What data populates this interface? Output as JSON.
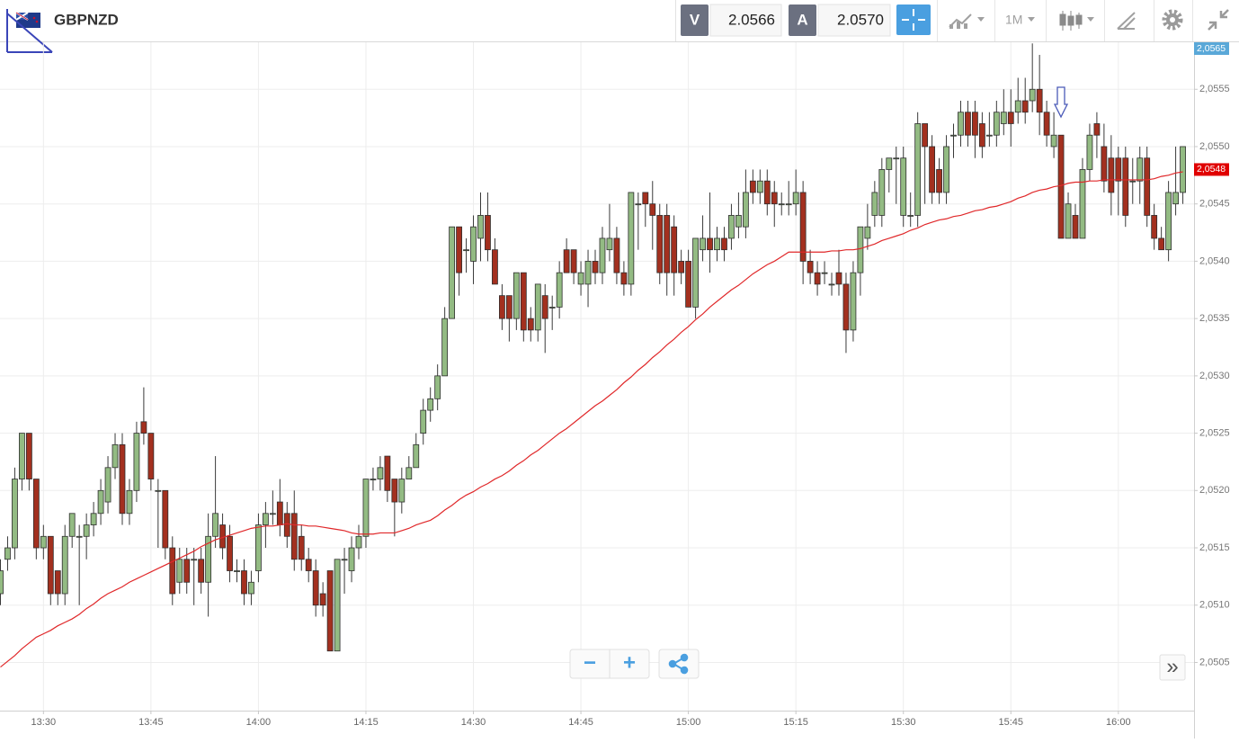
{
  "header": {
    "symbol": "GBPNZD",
    "sell_label": "V",
    "sell_price": "2.0566",
    "buy_label": "A",
    "buy_price": "2.0570",
    "timeframe": "1M"
  },
  "controls": {
    "zoom_out": "−",
    "zoom_in": "+",
    "expand": "»"
  },
  "chart_data": {
    "type": "candlestick",
    "categories": [
      null,
      null,
      null,
      null,
      null,
      null,
      "13:30",
      null,
      null,
      null,
      null,
      null,
      null,
      null,
      null,
      null,
      null,
      null,
      null,
      null,
      null,
      "13:45",
      null,
      null,
      null,
      null,
      null,
      null,
      null,
      null,
      null,
      null,
      null,
      null,
      null,
      null,
      "14:00",
      null,
      null,
      null,
      null,
      null,
      null,
      null,
      null,
      null,
      null,
      null,
      null,
      null,
      null,
      "14:15",
      null,
      null,
      null,
      null,
      null,
      null,
      null,
      null,
      null,
      null,
      null,
      null,
      null,
      null,
      "14:30",
      null,
      null,
      null,
      null,
      null,
      null,
      null,
      null,
      null,
      null,
      null,
      null,
      null,
      null,
      "14:45",
      null,
      null,
      null,
      null,
      null,
      null,
      null,
      null,
      null,
      null,
      null,
      null,
      null,
      null,
      "15:00",
      null,
      null,
      null,
      null,
      null,
      null,
      null,
      null,
      null,
      null,
      null,
      null,
      null,
      null,
      "15:15",
      null,
      null,
      null,
      null,
      null,
      null,
      null,
      null,
      null,
      null,
      null,
      null,
      null,
      null,
      "15:30",
      null,
      null,
      null,
      null,
      null,
      null,
      null,
      null,
      null,
      null,
      null,
      null,
      null,
      null,
      "15:45",
      null,
      null,
      null,
      null,
      null,
      null,
      null,
      null,
      null,
      null,
      null,
      null,
      null,
      null,
      "16:00",
      null,
      null,
      null,
      null,
      null,
      null,
      null,
      null,
      null
    ],
    "open": [
      2.0511,
      2.0514,
      2.0515,
      2.0521,
      2.0525,
      2.0521,
      2.0515,
      2.0516,
      2.0513,
      2.0511,
      2.0516,
      2.0516,
      2.0516,
      2.0517,
      2.0518,
      2.0519,
      2.0522,
      2.0524,
      2.0518,
      2.052,
      2.0526,
      2.0525,
      2.052,
      2.052,
      2.0515,
      2.0512,
      2.0514,
      2.0514,
      2.0514,
      2.0512,
      2.0516,
      2.0517,
      2.0516,
      2.0513,
      2.0513,
      2.0511,
      2.0513,
      2.0517,
      2.0518,
      2.0519,
      2.0518,
      2.0518,
      2.0516,
      2.0514,
      2.0513,
      2.0511,
      2.0513,
      2.0506,
      2.0514,
      2.0513,
      2.0515,
      2.0516,
      2.0521,
      2.0521,
      2.0523,
      2.0521,
      2.0519,
      2.0521,
      2.0522,
      2.0525,
      2.0527,
      2.0528,
      2.053,
      2.0535,
      2.0543,
      2.0541,
      2.054,
      2.0542,
      2.0544,
      2.0541,
      2.0537,
      2.0537,
      2.0535,
      2.0539,
      2.0535,
      2.0534,
      2.0537,
      2.0536,
      2.0536,
      2.0541,
      2.0541,
      2.0538,
      2.0538,
      2.054,
      2.0539,
      2.0541,
      2.0542,
      2.0539,
      2.0538,
      2.0545,
      2.0546,
      2.0545,
      2.0544,
      2.0544,
      2.0543,
      2.054,
      2.054,
      2.0536,
      2.0541,
      2.0542,
      2.0541,
      2.0542,
      2.0542,
      2.0543,
      2.0543,
      2.0547,
      2.0546,
      2.0547,
      2.0546,
      2.0545,
      2.0545,
      2.0545,
      2.0546,
      2.054,
      2.0539,
      2.0539,
      2.0538,
      2.0539,
      2.0538,
      2.0534,
      2.0539,
      2.0542,
      2.0544,
      2.0544,
      2.0548,
      2.0549,
      2.0544,
      2.0544,
      2.0544,
      2.0552,
      2.055,
      2.0548,
      2.0546,
      2.0551,
      2.0551,
      2.0553,
      2.0553,
      2.0552,
      2.0551,
      2.0551,
      2.0552,
      2.0553,
      2.0553,
      2.0554,
      2.0554,
      2.0555,
      2.0553,
      2.055,
      2.0551,
      2.0542,
      2.0544,
      2.0542,
      2.0548,
      2.0552,
      2.055,
      2.0549,
      2.0549,
      2.0549,
      2.0547,
      2.0547,
      2.0549,
      2.0544,
      2.0542,
      2.0541,
      2.0545,
      2.0546
    ],
    "high": [
      2.0514,
      2.0516,
      2.0522,
      2.0525,
      2.0525,
      2.0521,
      2.0517,
      2.0516,
      2.0513,
      2.0517,
      2.0518,
      2.0517,
      2.0518,
      2.0519,
      2.0521,
      2.0523,
      2.0525,
      2.0525,
      2.0521,
      2.0526,
      2.0529,
      2.0525,
      2.0521,
      2.052,
      2.0516,
      2.0515,
      2.0515,
      2.0515,
      2.0515,
      2.0518,
      2.0523,
      2.0518,
      2.0517,
      2.0514,
      2.0514,
      2.0513,
      2.0518,
      2.0519,
      2.052,
      2.0521,
      2.0519,
      2.052,
      2.0517,
      2.0515,
      2.0514,
      2.0512,
      2.0513,
      2.0514,
      2.0515,
      2.0516,
      2.0517,
      2.0521,
      2.0522,
      2.0523,
      2.0523,
      2.0521,
      2.0522,
      2.0523,
      2.0525,
      2.0528,
      2.0529,
      2.0531,
      2.0536,
      2.0543,
      2.0543,
      2.0542,
      2.0544,
      2.0546,
      2.0546,
      2.0542,
      2.0538,
      2.0537,
      2.0539,
      2.0539,
      2.0536,
      2.0538,
      2.0538,
      2.0537,
      2.054,
      2.0542,
      2.0541,
      2.054,
      2.0541,
      2.0541,
      2.0543,
      2.0545,
      2.0543,
      2.054,
      2.0546,
      2.0546,
      2.0546,
      2.0547,
      2.0545,
      2.0545,
      2.0544,
      2.0541,
      2.0541,
      2.0542,
      2.0544,
      2.0546,
      2.0543,
      2.0543,
      2.0545,
      2.0546,
      2.0548,
      2.0548,
      2.0548,
      2.0548,
      2.0547,
      2.0546,
      2.0547,
      2.0548,
      2.0547,
      2.0541,
      2.054,
      2.054,
      2.0539,
      2.0541,
      2.0539,
      2.054,
      2.0543,
      2.0545,
      2.0547,
      2.0549,
      2.0549,
      2.055,
      2.055,
      2.0546,
      2.0553,
      2.0552,
      2.0551,
      2.0549,
      2.0551,
      2.0552,
      2.0554,
      2.0554,
      2.0554,
      2.0553,
      2.0553,
      2.0554,
      2.0555,
      2.0555,
      2.0556,
      2.0556,
      2.0559,
      2.0558,
      2.0554,
      2.0553,
      2.0551,
      2.0546,
      2.0545,
      2.0549,
      2.0552,
      2.0553,
      2.0552,
      2.0551,
      2.055,
      2.055,
      2.0549,
      2.055,
      2.055,
      2.0545,
      2.0543,
      2.0547,
      2.055,
      2.055
    ],
    "low": [
      2.051,
      2.0513,
      2.0514,
      2.052,
      2.052,
      2.0514,
      2.0514,
      2.051,
      2.051,
      2.051,
      2.0515,
      2.051,
      2.0514,
      2.0516,
      2.0517,
      2.0518,
      2.0521,
      2.0517,
      2.0517,
      2.0519,
      2.0524,
      2.052,
      2.0515,
      2.0514,
      2.051,
      2.0511,
      2.0511,
      2.051,
      2.0511,
      2.0509,
      2.0515,
      2.0514,
      2.0512,
      2.0512,
      2.051,
      2.051,
      2.0512,
      2.0515,
      2.0517,
      2.0516,
      2.0515,
      2.0513,
      2.0513,
      2.0512,
      2.0509,
      2.0509,
      2.0506,
      2.0506,
      2.0511,
      2.0512,
      2.0514,
      2.0515,
      2.052,
      2.052,
      2.0519,
      2.0516,
      2.0518,
      2.0521,
      2.0522,
      2.0524,
      2.0526,
      2.0527,
      2.053,
      2.0535,
      2.0537,
      2.0539,
      2.0538,
      2.054,
      2.054,
      2.0538,
      2.0534,
      2.0533,
      2.0534,
      2.0533,
      2.0533,
      2.0533,
      2.0532,
      2.0534,
      2.0535,
      2.0539,
      2.0538,
      2.0537,
      2.0536,
      2.0538,
      2.0538,
      2.054,
      2.0538,
      2.0537,
      2.0537,
      2.0541,
      2.0543,
      2.0541,
      2.0538,
      2.0537,
      2.0537,
      2.0538,
      2.0536,
      2.0535,
      2.054,
      2.0539,
      2.054,
      2.054,
      2.0541,
      2.0542,
      2.0542,
      2.0545,
      2.0545,
      2.0544,
      2.0543,
      2.0544,
      2.0544,
      2.0544,
      2.0538,
      2.0538,
      2.0537,
      2.0538,
      2.0537,
      2.0537,
      2.0532,
      2.0533,
      2.0537,
      2.0541,
      2.0543,
      2.0543,
      2.0546,
      2.0545,
      2.0543,
      2.0543,
      2.0543,
      2.0545,
      2.0545,
      2.0545,
      2.0545,
      2.0549,
      2.055,
      2.055,
      2.0549,
      2.0549,
      2.055,
      2.055,
      2.0551,
      2.055,
      2.0552,
      2.0552,
      2.0553,
      2.0551,
      2.055,
      2.0549,
      2.0542,
      2.0542,
      2.0542,
      2.0542,
      2.0547,
      2.0549,
      2.0546,
      2.0544,
      2.0544,
      2.0543,
      2.0545,
      2.0545,
      2.0543,
      2.0541,
      2.0541,
      2.054,
      2.0544,
      2.0545
    ],
    "close": [
      2.0513,
      2.0515,
      2.0521,
      2.0525,
      2.0521,
      2.0515,
      2.0516,
      2.0511,
      2.0511,
      2.0516,
      2.0518,
      2.0516,
      2.0517,
      2.0518,
      2.052,
      2.0522,
      2.0524,
      2.0518,
      2.052,
      2.0525,
      2.0525,
      2.0521,
      2.052,
      2.0515,
      2.0511,
      2.0514,
      2.0512,
      2.0514,
      2.0512,
      2.0516,
      2.0518,
      2.0515,
      2.0513,
      2.0513,
      2.0511,
      2.0512,
      2.0517,
      2.0518,
      2.0518,
      2.0517,
      2.0516,
      2.0514,
      2.0514,
      2.0513,
      2.051,
      2.051,
      2.0506,
      2.0514,
      2.0514,
      2.0515,
      2.0516,
      2.0521,
      2.0521,
      2.0522,
      2.052,
      2.0519,
      2.0521,
      2.0522,
      2.0524,
      2.0527,
      2.0528,
      2.053,
      2.0535,
      2.0543,
      2.0539,
      2.0541,
      2.0543,
      2.0544,
      2.0541,
      2.0538,
      2.0535,
      2.0535,
      2.0539,
      2.0534,
      2.0534,
      2.0538,
      2.0535,
      2.0536,
      2.0539,
      2.0539,
      2.0539,
      2.0539,
      2.054,
      2.0539,
      2.0542,
      2.0542,
      2.0539,
      2.0538,
      2.0546,
      2.0545,
      2.0545,
      2.0544,
      2.0539,
      2.0539,
      2.0539,
      2.0539,
      2.0536,
      2.0542,
      2.0542,
      2.0541,
      2.0542,
      2.0541,
      2.0544,
      2.0544,
      2.0546,
      2.0546,
      2.0547,
      2.0545,
      2.0545,
      2.0545,
      2.0545,
      2.0546,
      2.054,
      2.0539,
      2.0538,
      2.0539,
      2.0538,
      2.0538,
      2.0534,
      2.0539,
      2.0543,
      2.0543,
      2.0546,
      2.0548,
      2.0549,
      2.0549,
      2.0549,
      2.0544,
      2.0552,
      2.055,
      2.0546,
      2.0546,
      2.055,
      2.0551,
      2.0553,
      2.0551,
      2.0551,
      2.055,
      2.0551,
      2.0553,
      2.0553,
      2.0552,
      2.0554,
      2.0553,
      2.0555,
      2.0553,
      2.0551,
      2.0551,
      2.0542,
      2.0545,
      2.0542,
      2.0548,
      2.0551,
      2.0551,
      2.0547,
      2.0546,
      2.0547,
      2.0544,
      2.0547,
      2.0549,
      2.0544,
      2.0542,
      2.0541,
      2.0546,
      2.0546,
      2.055
    ],
    "up_color": "#93bb83",
    "down_color": "#a3301f",
    "moving_average": {
      "color": "#e0282a",
      "values": [
        2.05046,
        2.05051,
        2.05056,
        2.05062,
        2.05067,
        2.05072,
        2.05075,
        2.05078,
        2.05082,
        2.05085,
        2.05088,
        2.05092,
        2.05097,
        2.05101,
        2.05106,
        2.0511,
        2.05113,
        2.05116,
        2.0512,
        2.05123,
        2.05126,
        2.05129,
        2.05132,
        2.05135,
        2.05138,
        2.05141,
        2.05144,
        2.05147,
        2.05151,
        2.05154,
        2.05157,
        2.05159,
        2.05161,
        2.05163,
        2.05165,
        2.05167,
        2.05168,
        2.05169,
        2.05169,
        2.0517,
        2.05171,
        2.0517,
        2.0517,
        2.05169,
        2.05169,
        2.05168,
        2.05167,
        2.05166,
        2.05165,
        2.05163,
        2.05162,
        2.05162,
        2.05162,
        2.05163,
        2.05163,
        2.05163,
        2.05165,
        2.05167,
        2.0517,
        2.05172,
        2.05174,
        2.05178,
        2.05183,
        2.05187,
        2.05192,
        2.05196,
        2.05199,
        2.05203,
        2.05206,
        2.0521,
        2.05213,
        2.05217,
        2.05222,
        2.05226,
        2.05231,
        2.05235,
        2.0524,
        2.05245,
        2.0525,
        2.05254,
        2.05259,
        2.05264,
        2.05269,
        2.05274,
        2.05278,
        2.05283,
        2.05288,
        2.05294,
        2.05299,
        2.05305,
        2.0531,
        2.05316,
        2.05321,
        2.05327,
        2.05332,
        2.05338,
        2.05343,
        2.05349,
        2.05354,
        2.0536,
        2.05365,
        2.0537,
        2.05375,
        2.05379,
        2.05384,
        2.05389,
        2.05393,
        2.05397,
        2.054,
        2.05404,
        2.05408,
        2.05408,
        2.05408,
        2.05408,
        2.05408,
        2.05408,
        2.05409,
        2.05409,
        2.0541,
        2.0541,
        2.05411,
        2.05413,
        2.05415,
        2.05418,
        2.0542,
        2.05422,
        2.05424,
        2.05427,
        2.05429,
        2.05432,
        2.05434,
        2.05436,
        2.05437,
        2.05439,
        2.0544,
        2.05442,
        2.05444,
        2.05445,
        2.05447,
        2.05448,
        2.0545,
        2.05452,
        2.05455,
        2.05457,
        2.0546,
        2.05462,
        2.05463,
        2.05465,
        2.05466,
        2.05468,
        2.05469,
        2.05469,
        2.0547,
        2.0547,
        2.05471,
        2.05471,
        2.05471,
        2.05471,
        2.05471,
        2.05471,
        2.05471,
        2.05472,
        2.05474,
        2.05475,
        2.05477,
        2.05478
      ]
    },
    "ylim": [
      2.05008,
      2.05591
    ],
    "yticks": [
      {
        "value": 2.0505,
        "label": "2,0505"
      },
      {
        "value": 2.051,
        "label": "2,0510"
      },
      {
        "value": 2.0515,
        "label": "2,0515"
      },
      {
        "value": 2.052,
        "label": "2,0520"
      },
      {
        "value": 2.0525,
        "label": "2,0525"
      },
      {
        "value": 2.053,
        "label": "2,0530"
      },
      {
        "value": 2.0535,
        "label": "2,0535"
      },
      {
        "value": 2.054,
        "label": "2,0540"
      },
      {
        "value": 2.0545,
        "label": "2,0545"
      },
      {
        "value": 2.055,
        "label": "2,0550"
      },
      {
        "value": 2.0555,
        "label": "2,0555"
      }
    ],
    "price_tags": [
      {
        "value": 2.0565,
        "label": "2,0565",
        "color": "#5aa8d8"
      },
      {
        "value": 2.0548,
        "label": "2,0548",
        "color": "#e00000"
      }
    ],
    "grid": true
  }
}
